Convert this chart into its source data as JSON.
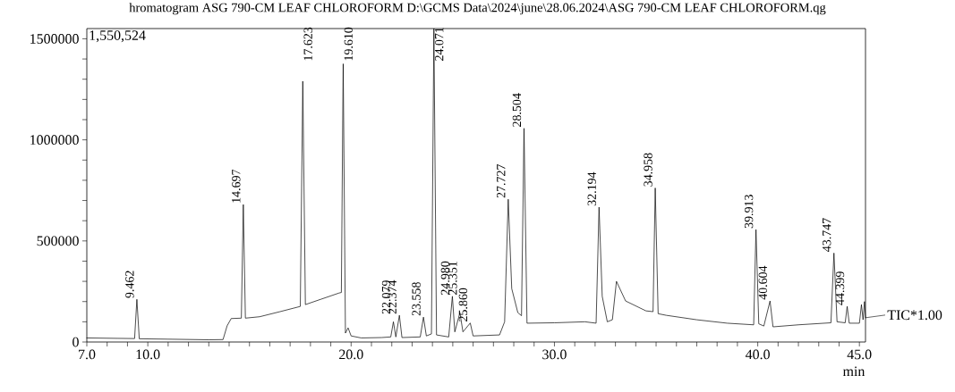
{
  "chart_data": {
    "type": "line",
    "title": "hromatogram ASG 790-CM LEAF CHLOROFORM D:\\GCMS Data\\2024\\june\\28.06.2024\\ASG 790-CM LEAF CHLOROFORM.qg",
    "xlabel": "min",
    "xlim": [
      7.0,
      45.3
    ],
    "ylim": [
      0,
      1550524
    ],
    "xticks": [
      {
        "value": 7,
        "label": "7.0"
      },
      {
        "value": 8,
        "label": null
      },
      {
        "value": 9,
        "label": null
      },
      {
        "value": 10,
        "label": "10.0"
      },
      {
        "value": 11,
        "label": null
      },
      {
        "value": 12,
        "label": null
      },
      {
        "value": 13,
        "label": null
      },
      {
        "value": 14,
        "label": null
      },
      {
        "value": 15,
        "label": null
      },
      {
        "value": 16,
        "label": null
      },
      {
        "value": 17,
        "label": null
      },
      {
        "value": 18,
        "label": null
      },
      {
        "value": 19,
        "label": null
      },
      {
        "value": 20,
        "label": "20.0"
      },
      {
        "value": 21,
        "label": null
      },
      {
        "value": 22,
        "label": null
      },
      {
        "value": 23,
        "label": null
      },
      {
        "value": 24,
        "label": null
      },
      {
        "value": 25,
        "label": null
      },
      {
        "value": 26,
        "label": null
      },
      {
        "value": 27,
        "label": null
      },
      {
        "value": 28,
        "label": null
      },
      {
        "value": 29,
        "label": null
      },
      {
        "value": 30,
        "label": "30.0"
      },
      {
        "value": 31,
        "label": null
      },
      {
        "value": 32,
        "label": null
      },
      {
        "value": 33,
        "label": null
      },
      {
        "value": 34,
        "label": null
      },
      {
        "value": 35,
        "label": null
      },
      {
        "value": 36,
        "label": null
      },
      {
        "value": 37,
        "label": null
      },
      {
        "value": 38,
        "label": null
      },
      {
        "value": 39,
        "label": null
      },
      {
        "value": 40,
        "label": "40.0"
      },
      {
        "value": 41,
        "label": null
      },
      {
        "value": 42,
        "label": null
      },
      {
        "value": 43,
        "label": null
      },
      {
        "value": 44,
        "label": null
      },
      {
        "value": 45,
        "label": "45.0"
      }
    ],
    "yticks": [
      0,
      {
        "value": 100000,
        "label": null
      },
      {
        "value": 200000,
        "label": null
      },
      {
        "value": 300000,
        "label": null
      },
      {
        "value": 400000,
        "label": null
      },
      500000,
      {
        "value": 600000,
        "label": null
      },
      {
        "value": 700000,
        "label": null
      },
      {
        "value": 800000,
        "label": null
      },
      {
        "value": 900000,
        "label": null
      },
      1000000,
      {
        "value": 1100000,
        "label": null
      },
      {
        "value": 1200000,
        "label": null
      },
      {
        "value": 1300000,
        "label": null
      },
      {
        "value": 1400000,
        "label": null
      },
      1500000
    ],
    "series": [
      {
        "name": "TIC*1.00",
        "color": "#000000",
        "x": [
          7.0,
          8.5,
          9.35,
          9.462,
          9.58,
          11.0,
          13.0,
          13.7,
          13.9,
          14.1,
          14.6,
          14.697,
          14.8,
          15.5,
          16.5,
          17.5,
          17.623,
          17.75,
          18.5,
          19.4,
          19.52,
          19.61,
          19.72,
          19.85,
          20.0,
          20.5,
          21.5,
          21.95,
          22.079,
          22.2,
          22.374,
          22.5,
          23.4,
          23.558,
          23.7,
          23.95,
          24.071,
          24.2,
          24.8,
          24.98,
          25.1,
          25.351,
          25.5,
          25.86,
          26.0,
          27.3,
          27.55,
          27.727,
          27.9,
          28.2,
          28.38,
          28.504,
          28.65,
          30.0,
          31.5,
          32.05,
          32.194,
          32.35,
          32.6,
          32.85,
          33.05,
          33.5,
          34.5,
          34.85,
          34.958,
          35.1,
          35.5,
          37.0,
          38.5,
          39.8,
          39.913,
          40.05,
          40.3,
          40.604,
          40.75,
          42.0,
          43.6,
          43.747,
          43.9,
          44.3,
          44.399,
          44.5,
          45.0,
          45.1,
          45.18,
          45.25,
          45.3
        ],
        "values": [
          20000,
          18000,
          17000,
          211000,
          16000,
          14000,
          11000,
          12000,
          80000,
          116000,
          118000,
          680000,
          118000,
          125000,
          150000,
          176000,
          1290000,
          185000,
          211000,
          242000,
          245000,
          1376000,
          44000,
          70000,
          30000,
          20000,
          22000,
          25000,
          100000,
          25000,
          132000,
          22000,
          25000,
          123000,
          30000,
          40000,
          1550524,
          35000,
          25000,
          226000,
          50000,
          145000,
          50000,
          94000,
          30000,
          35000,
          100000,
          706000,
          264000,
          145000,
          130000,
          1057000,
          93000,
          95000,
          100000,
          93000,
          667000,
          226000,
          100000,
          110000,
          300000,
          203000,
          154000,
          150000,
          762000,
          140000,
          132000,
          110000,
          93000,
          85000,
          556000,
          90000,
          79000,
          203000,
          75000,
          85000,
          95000,
          440000,
          100000,
          95000,
          176000,
          93000,
          93000,
          185000,
          110000,
          200000,
          120000
        ]
      }
    ],
    "annotations": [
      "1,550,524",
      {
        "text": "9.462",
        "x": 9.462,
        "y": 211000
      },
      {
        "text": "14.697",
        "x": 14.697,
        "y": 680000
      },
      {
        "text": "17.623",
        "x": 17.623,
        "y": 1290000
      },
      {
        "text": "19.610",
        "x": 19.61,
        "y": 1376000
      },
      {
        "text": "22.079",
        "x": 22.079,
        "y": 100000
      },
      {
        "text": "22.374",
        "x": 22.374,
        "y": 132000
      },
      {
        "text": "23.558",
        "x": 23.558,
        "y": 123000
      },
      {
        "text": "24.071",
        "x": 24.071,
        "y": 1550524
      },
      {
        "text": "24.980",
        "x": 24.98,
        "y": 226000
      },
      {
        "text": "25.351",
        "x": 25.351,
        "y": 145000
      },
      {
        "text": "25.860",
        "x": 25.86,
        "y": 94000
      },
      {
        "text": "27.727",
        "x": 27.727,
        "y": 706000
      },
      {
        "text": "28.504",
        "x": 28.504,
        "y": 1057000
      },
      {
        "text": "32.194",
        "x": 32.194,
        "y": 667000
      },
      {
        "text": "34.958",
        "x": 34.958,
        "y": 762000
      },
      {
        "text": "39.913",
        "x": 39.913,
        "y": 556000
      },
      {
        "text": "40.604",
        "x": 40.604,
        "y": 203000
      },
      {
        "text": "43.747",
        "x": 43.747,
        "y": 440000
      },
      {
        "text": "44.399",
        "x": 44.399,
        "y": 176000
      }
    ]
  }
}
